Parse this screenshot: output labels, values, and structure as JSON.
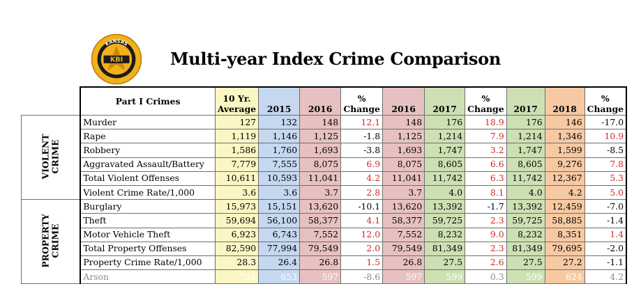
{
  "logo": {
    "top_text": "KANSAS",
    "center_text": "KBI",
    "bottom_text": "BUREAU OF INVESTIGATION",
    "color": "#f2b01e"
  },
  "title": "Multi-year Index Crime Comparison",
  "headers": {
    "crimes": "Part I Crimes",
    "avg_line1": "10 Yr.",
    "avg_line2": "Average",
    "y2015": "2015",
    "y2016a": "2016",
    "pct1_line1": "%",
    "pct1_line2": "Change",
    "y2016b": "2016",
    "y2017a": "2017",
    "pct2_line1": "%",
    "pct2_line2": "Change",
    "y2017b": "2017",
    "y2018": "2018",
    "pct3_line1": "%",
    "pct3_line2": "Change"
  },
  "groups": {
    "violent": "VIOLENT CRIME",
    "property": "PROPERTY CRIME"
  },
  "violent_rows": [
    {
      "name": "Murder",
      "avg": "127",
      "y2015": "132",
      "y2016a": "148",
      "pct1": "12.1",
      "y2016b": "148",
      "y2017a": "176",
      "pct2": "18.9",
      "y2017b": "176",
      "y2018": "146",
      "pct3": "-17.0"
    },
    {
      "name": "Rape",
      "avg": "1,119",
      "y2015": "1,146",
      "y2016a": "1,125",
      "pct1": "-1.8",
      "y2016b": "1,125",
      "y2017a": "1,214",
      "pct2": "7.9",
      "y2017b": "1,214",
      "y2018": "1,346",
      "pct3": "10.9"
    },
    {
      "name": "Robbery",
      "avg": "1,586",
      "y2015": "1,760",
      "y2016a": "1,693",
      "pct1": "-3.8",
      "y2016b": "1,693",
      "y2017a": "1,747",
      "pct2": "3.2",
      "y2017b": "1,747",
      "y2018": "1,599",
      "pct3": "-8.5"
    },
    {
      "name": "Aggravated Assault/Battery",
      "avg": "7,779",
      "y2015": "7,555",
      "y2016a": "8,075",
      "pct1": "6.9",
      "y2016b": "8,075",
      "y2017a": "8,605",
      "pct2": "6.6",
      "y2017b": "8,605",
      "y2018": "9,276",
      "pct3": "7.8"
    },
    {
      "name": "Total Violent Offenses",
      "avg": "10,611",
      "y2015": "10,593",
      "y2016a": "11,041",
      "pct1": "4.2",
      "y2016b": "11,041",
      "y2017a": "11,742",
      "pct2": "6.3",
      "y2017b": "11,742",
      "y2018": "12,367",
      "pct3": "5.3"
    },
    {
      "name": "Violent Crime Rate/1,000",
      "avg": "3.6",
      "y2015": "3.6",
      "y2016a": "3.7",
      "pct1": "2.8",
      "y2016b": "3.7",
      "y2017a": "4.0",
      "pct2": "8.1",
      "y2017b": "4.0",
      "y2018": "4.2",
      "pct3": "5.0"
    }
  ],
  "property_rows": [
    {
      "name": "Burglary",
      "avg": "15,973",
      "y2015": "15,151",
      "y2016a": "13,620",
      "pct1": "-10.1",
      "y2016b": "13,620",
      "y2017a": "13,392",
      "pct2": "-1.7",
      "y2017b": "13,392",
      "y2018": "12,459",
      "pct3": "-7.0"
    },
    {
      "name": "Theft",
      "avg": "59,694",
      "y2015": "56,100",
      "y2016a": "58,377",
      "pct1": "4.1",
      "y2016b": "58,377",
      "y2017a": "59,725",
      "pct2": "2.3",
      "y2017b": "59,725",
      "y2018": "58,885",
      "pct3": "-1.4"
    },
    {
      "name": "Motor Vehicle Theft",
      "avg": "6,923",
      "y2015": "6,743",
      "y2016a": "7,552",
      "pct1": "12.0",
      "y2016b": "7,552",
      "y2017a": "8,232",
      "pct2": "9.0",
      "y2017b": "8,232",
      "y2018": "8,351",
      "pct3": "1.4"
    },
    {
      "name": "Total Property Offenses",
      "avg": "82,590",
      "y2015": "77,994",
      "y2016a": "79,549",
      "pct1": "2.0",
      "y2016b": "79,549",
      "y2017a": "81,349",
      "pct2": "2.3",
      "y2017b": "81,349",
      "y2018": "79,695",
      "pct3": "-2.0"
    },
    {
      "name": "Property Crime Rate/1,000",
      "avg": "28.3",
      "y2015": "26.4",
      "y2016a": "26.8",
      "pct1": "1.5",
      "y2016b": "26.8",
      "y2017a": "27.5",
      "pct2": "2.6",
      "y2017b": "27.5",
      "y2018": "27.2",
      "pct3": "-1.1"
    },
    {
      "name": "Arson",
      "avg": "724",
      "y2015": "653",
      "y2016a": "597",
      "pct1": "-8.6",
      "y2016b": "597",
      "y2017a": "599",
      "pct2": "0.3",
      "y2017b": "599",
      "y2018": "624",
      "pct3": "4.2"
    }
  ],
  "colors": {
    "avg": "#fbf6c3",
    "y2015": "#c6d8ef",
    "y2016": "#e7c1c1",
    "y2017": "#cde0b3",
    "y2018": "#f7c9a3",
    "increase": "#d52626"
  }
}
